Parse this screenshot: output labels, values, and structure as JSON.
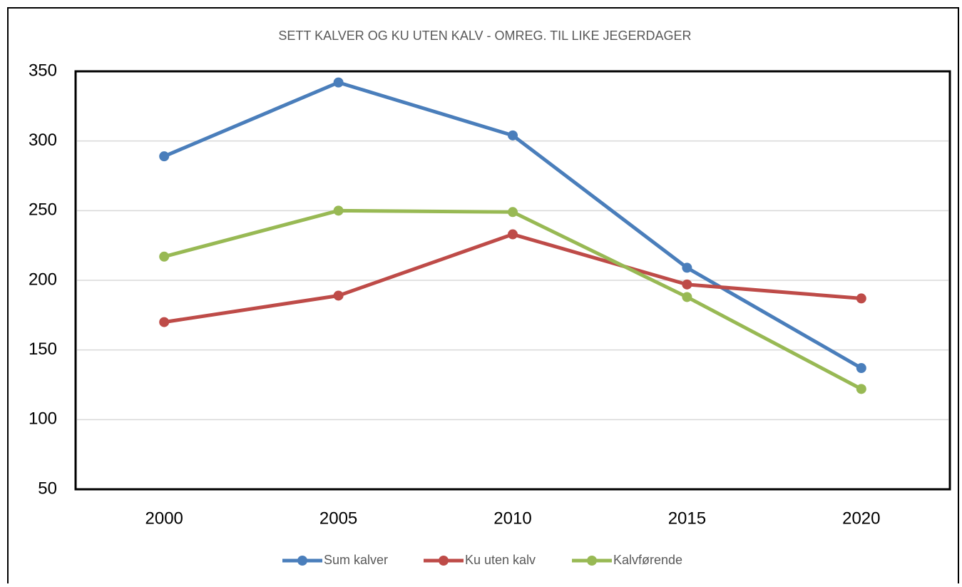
{
  "chart_data": {
    "type": "line",
    "title": "SETT KALVER OG KU UTEN KALV - OMREG. TIL LIKE JEGERDAGER",
    "categories": [
      "2000",
      "2005",
      "2010",
      "2015",
      "2020"
    ],
    "series": [
      {
        "name": "Sum kalver",
        "color": "#4a7ebb",
        "values": [
          289,
          342,
          304,
          209,
          137
        ]
      },
      {
        "name": "Ku uten kalv",
        "color": "#be4b48",
        "values": [
          170,
          189,
          233,
          197,
          187
        ]
      },
      {
        "name": "Kalvførende",
        "color": "#98b954",
        "values": [
          217,
          250,
          249,
          188,
          122
        ]
      }
    ],
    "ylim": [
      50,
      350
    ],
    "yticks": [
      50,
      100,
      150,
      200,
      250,
      300,
      350
    ],
    "grid": true
  }
}
